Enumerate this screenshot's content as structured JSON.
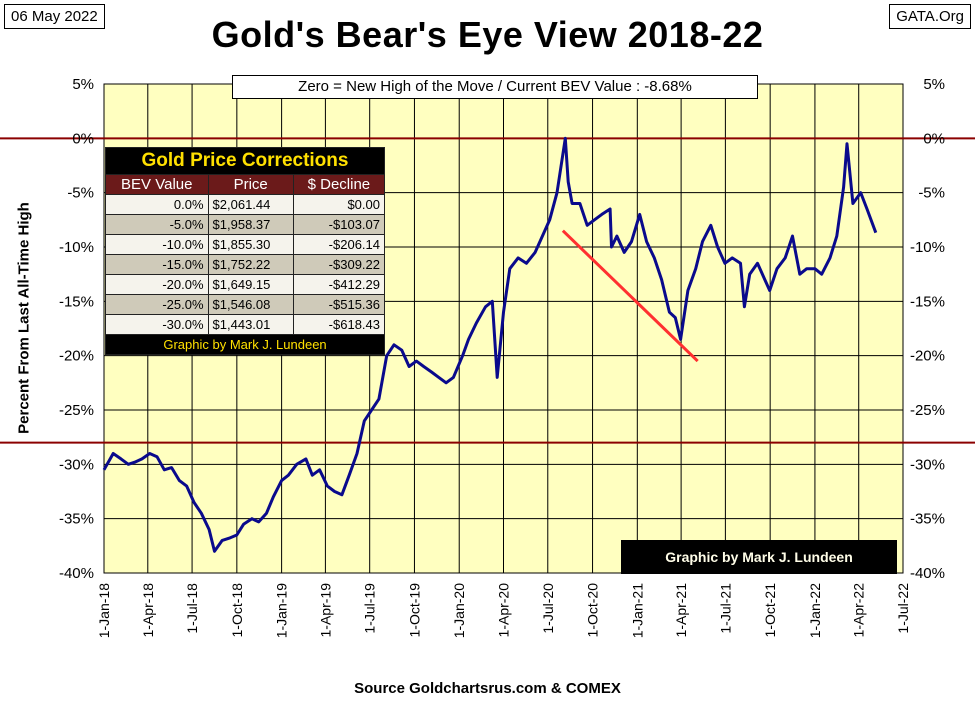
{
  "header": {
    "date_label": "06 May 2022",
    "site_label": "GATA.Org"
  },
  "chart_data": {
    "type": "line",
    "title": "Gold's Bear's Eye View 2018-22",
    "subtitle": "Zero = New High of the Move / Current  BEV Value : -8.68%",
    "ylabel": "Percent   From Last  All-Time High",
    "xlabel": "Source Goldchartsrus.com & COMEX",
    "ylim": [
      -40,
      5
    ],
    "xlim": [
      "2018-01-01",
      "2022-07-01"
    ],
    "yticks": [
      5,
      0,
      -5,
      -10,
      -15,
      -20,
      -25,
      -30,
      -35,
      -40
    ],
    "ytick_labels": [
      "5%",
      "0%",
      "-5%",
      "-10%",
      "-15%",
      "-20%",
      "-25%",
      "-30%",
      "-35%",
      "-40%"
    ],
    "xtick_labels": [
      "1-Jan-18",
      "1-Apr-18",
      "1-Jul-18",
      "1-Oct-18",
      "1-Jan-19",
      "1-Apr-19",
      "1-Jul-19",
      "1-Oct-19",
      "1-Jan-20",
      "1-Apr-20",
      "1-Jul-20",
      "1-Oct-20",
      "1-Jan-21",
      "1-Apr-21",
      "1-Jul-21",
      "1-Oct-21",
      "1-Jan-22",
      "1-Apr-22",
      "1-Jul-22"
    ],
    "grid": true,
    "reference_lines": [
      0,
      -28
    ],
    "series": [
      {
        "color": "#0a0a8c",
        "x": [
          "2018-01-01",
          "2018-01-20",
          "2018-02-05",
          "2018-02-20",
          "2018-03-05",
          "2018-03-20",
          "2018-04-05",
          "2018-04-20",
          "2018-05-05",
          "2018-05-20",
          "2018-06-05",
          "2018-06-20",
          "2018-07-05",
          "2018-07-20",
          "2018-08-05",
          "2018-08-16",
          "2018-09-01",
          "2018-09-15",
          "2018-10-01",
          "2018-10-15",
          "2018-11-01",
          "2018-11-15",
          "2018-12-01",
          "2018-12-15",
          "2019-01-01",
          "2019-01-15",
          "2019-02-01",
          "2019-02-20",
          "2019-03-05",
          "2019-03-20",
          "2019-04-05",
          "2019-04-20",
          "2019-05-05",
          "2019-05-20",
          "2019-06-05",
          "2019-06-20",
          "2019-07-05",
          "2019-07-20",
          "2019-08-05",
          "2019-08-20",
          "2019-09-05",
          "2019-09-20",
          "2019-10-05",
          "2019-10-20",
          "2019-11-05",
          "2019-11-20",
          "2019-12-05",
          "2019-12-20",
          "2020-01-08",
          "2020-01-20",
          "2020-02-05",
          "2020-02-24",
          "2020-03-09",
          "2020-03-19",
          "2020-04-01",
          "2020-04-14",
          "2020-05-01",
          "2020-05-18",
          "2020-06-05",
          "2020-06-20",
          "2020-07-05",
          "2020-07-20",
          "2020-08-06",
          "2020-08-12",
          "2020-08-20",
          "2020-09-05",
          "2020-09-20",
          "2020-10-05",
          "2020-10-20",
          "2020-11-06",
          "2020-11-09",
          "2020-11-20",
          "2020-12-05",
          "2020-12-20",
          "2021-01-06",
          "2021-01-20",
          "2021-02-05",
          "2021-02-20",
          "2021-03-08",
          "2021-03-20",
          "2021-03-31",
          "2021-04-15",
          "2021-05-01",
          "2021-05-15",
          "2021-06-01",
          "2021-06-15",
          "2021-06-30",
          "2021-07-15",
          "2021-08-01",
          "2021-08-09",
          "2021-08-20",
          "2021-09-05",
          "2021-09-20",
          "2021-09-30",
          "2021-10-15",
          "2021-11-01",
          "2021-11-16",
          "2021-12-01",
          "2021-12-15",
          "2022-01-01",
          "2022-01-15",
          "2022-02-01",
          "2022-02-15",
          "2022-03-01",
          "2022-03-08",
          "2022-03-20",
          "2022-04-05",
          "2022-04-18",
          "2022-05-06"
        ],
        "values": [
          -30.5,
          -29.0,
          -29.5,
          -30.0,
          -29.8,
          -29.5,
          -29.0,
          -29.3,
          -30.5,
          -30.3,
          -31.5,
          -32.0,
          -33.5,
          -34.5,
          -36.0,
          -38.0,
          -37.0,
          -36.8,
          -36.5,
          -35.5,
          -35.0,
          -35.3,
          -34.5,
          -33.0,
          -31.5,
          -31.0,
          -30.0,
          -29.5,
          -31.0,
          -30.5,
          -32.0,
          -32.5,
          -32.8,
          -31.0,
          -29.0,
          -26.0,
          -25.0,
          -24.0,
          -20.0,
          -19.0,
          -19.5,
          -21.0,
          -20.5,
          -21.0,
          -21.5,
          -22.0,
          -22.5,
          -22.0,
          -20.0,
          -18.5,
          -17.0,
          -15.5,
          -15.0,
          -22.0,
          -16.0,
          -12.0,
          -11.0,
          -11.5,
          -10.5,
          -9.0,
          -7.5,
          -5.0,
          0.0,
          -4.0,
          -6.0,
          -6.0,
          -8.0,
          -7.5,
          -7.0,
          -6.5,
          -10.0,
          -9.0,
          -10.5,
          -9.5,
          -7.0,
          -9.5,
          -11.0,
          -13.0,
          -16.0,
          -16.5,
          -18.5,
          -14.0,
          -12.0,
          -9.5,
          -8.0,
          -10.0,
          -11.5,
          -11.0,
          -11.5,
          -15.5,
          -12.5,
          -11.5,
          -13.0,
          -14.0,
          -12.0,
          -11.0,
          -9.0,
          -12.5,
          -12.0,
          -12.0,
          -12.5,
          -11.0,
          -9.0,
          -4.5,
          -0.5,
          -6.0,
          -5.0,
          -6.5,
          -8.68
        ]
      }
    ],
    "trendline": {
      "color": "#ff3030",
      "x": [
        "2020-08-01",
        "2021-05-05"
      ],
      "values": [
        -8.5,
        -20.5
      ]
    }
  },
  "table": {
    "title": "Gold Price Corrections",
    "headers": [
      "BEV Value",
      "Price",
      "$ Decline"
    ],
    "rows": [
      [
        "0.0%",
        "$2,061.44",
        "$0.00"
      ],
      [
        "-5.0%",
        "$1,958.37",
        "-$103.07"
      ],
      [
        "-10.0%",
        "$1,855.30",
        "-$206.14"
      ],
      [
        "-15.0%",
        "$1,752.22",
        "-$309.22"
      ],
      [
        "-20.0%",
        "$1,649.15",
        "-$412.29"
      ],
      [
        "-25.0%",
        "$1,546.08",
        "-$515.36"
      ],
      [
        "-30.0%",
        "$1,443.01",
        "-$618.43"
      ]
    ],
    "credit": "Graphic by Mark J. Lundeen"
  },
  "credit_box": "Graphic by Mark J. Lundeen"
}
